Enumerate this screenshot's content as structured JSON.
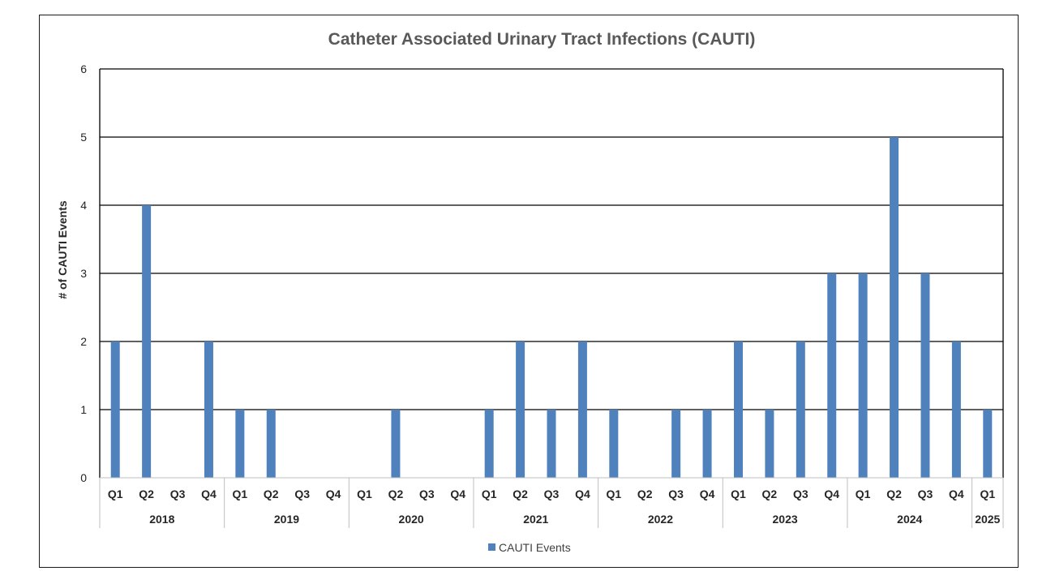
{
  "chart_data": {
    "type": "bar",
    "title": "Catheter Associated Urinary Tract Infections (CAUTI)",
    "xlabel": "",
    "ylabel": "# of CAUTI Events",
    "ylim": [
      0,
      6
    ],
    "yticks": [
      0,
      1,
      2,
      3,
      4,
      5,
      6
    ],
    "grid": true,
    "legend_position": "bottom",
    "color": "#4f81bd",
    "groups": [
      {
        "year": "2018",
        "quarters": [
          "Q1",
          "Q2",
          "Q3",
          "Q4"
        ]
      },
      {
        "year": "2019",
        "quarters": [
          "Q1",
          "Q2",
          "Q3",
          "Q4"
        ]
      },
      {
        "year": "2020",
        "quarters": [
          "Q1",
          "Q2",
          "Q3",
          "Q4"
        ]
      },
      {
        "year": "2021",
        "quarters": [
          "Q1",
          "Q2",
          "Q3",
          "Q4"
        ]
      },
      {
        "year": "2022",
        "quarters": [
          "Q1",
          "Q2",
          "Q3",
          "Q4"
        ]
      },
      {
        "year": "2023",
        "quarters": [
          "Q1",
          "Q2",
          "Q3",
          "Q4"
        ]
      },
      {
        "year": "2024",
        "quarters": [
          "Q1",
          "Q2",
          "Q3",
          "Q4"
        ]
      },
      {
        "year": "2025",
        "quarters": [
          "Q1"
        ]
      }
    ],
    "series": [
      {
        "name": "CAUTI Events",
        "values": [
          2,
          4,
          0,
          2,
          1,
          1,
          0,
          0,
          0,
          1,
          0,
          0,
          1,
          2,
          1,
          2,
          1,
          0,
          1,
          1,
          2,
          1,
          2,
          3,
          3,
          5,
          3,
          2,
          1
        ]
      }
    ]
  }
}
